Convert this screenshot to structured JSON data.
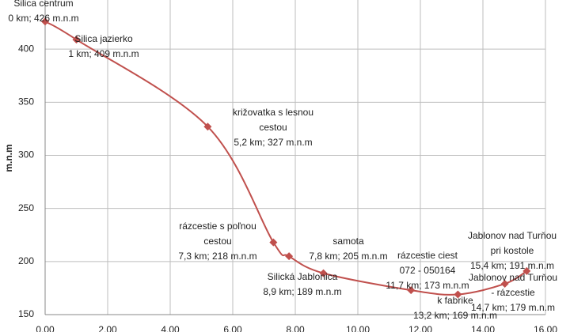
{
  "chart_data": {
    "type": "line",
    "y_axis_label": "m.n.m",
    "x": [
      0,
      1,
      5.2,
      7.3,
      7.8,
      8.9,
      11.7,
      13.2,
      14.7,
      15.4
    ],
    "series": [
      {
        "color": "#c0504d",
        "values": [
          426,
          409,
          327,
          218,
          205,
          189,
          173,
          169,
          179,
          191
        ]
      }
    ],
    "point_labels": [
      [
        "Silica centrum",
        "0 km; 426 m.n.m"
      ],
      [
        "Silica jazierko",
        "1 km; 409 m.n.m"
      ],
      [
        "križovatka s lesnou",
        "cestou",
        "5,2 km; 327 m.n.m"
      ],
      [
        "rázcestie s poľnou",
        "cestou",
        "7,3 km; 218 m.n.m"
      ],
      [
        "samota",
        "7,8 km; 205 m.n.m"
      ],
      [
        "Silická Jablonica",
        "8,9 km; 189 m.n.m"
      ],
      [
        "rázcestie ciest",
        "072 - 050164",
        "11,7 km; 173 m.n.m"
      ],
      [
        "k fabrike",
        "13,2 km; 169 m.n.m"
      ],
      [
        "Jablonov nad Turňou",
        "- rázcestie",
        "14,7 km; 179 m.n.m"
      ],
      [
        "Jablonov nad Turňou",
        "pri kostole",
        "15,4 km; 191 m.n.m"
      ]
    ],
    "xlim": [
      0,
      16
    ],
    "xticks": [
      {
        "value": 0,
        "label": "0,00"
      },
      {
        "value": 2,
        "label": "2,00"
      },
      {
        "value": 4,
        "label": "4,00"
      },
      {
        "value": 6,
        "label": "6,00"
      },
      {
        "value": 8,
        "label": "8,00"
      },
      {
        "value": 10,
        "label": "10,00"
      },
      {
        "value": 12,
        "label": "12,00"
      },
      {
        "value": 14,
        "label": "14,00"
      },
      {
        "value": 16,
        "label": "16,00"
      }
    ],
    "ylim": [
      150,
      450
    ],
    "yticks": [
      150,
      200,
      250,
      300,
      350,
      400
    ],
    "grid": true
  }
}
